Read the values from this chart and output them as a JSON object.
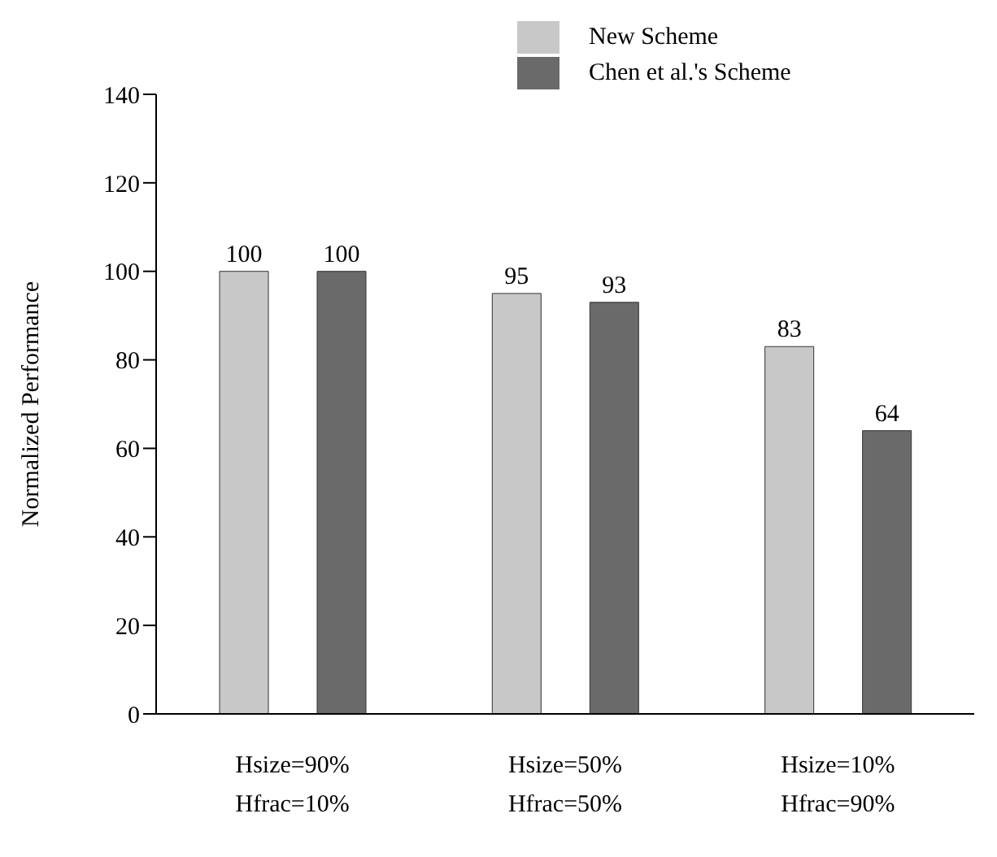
{
  "chart_data": {
    "type": "bar",
    "ylabel": "Normalized Performance",
    "categories": [
      "Hsize=90%\nHfrac=10%",
      "Hsize=50%\nHfrac=50%",
      "Hsize=10%\nHfrac=90%"
    ],
    "series": [
      {
        "name": "New Scheme",
        "color": "#c8c8c8",
        "values": [
          100,
          95,
          83
        ]
      },
      {
        "name": "Chen et al.'s Scheme",
        "color": "#6a6a6a",
        "values": [
          100,
          93,
          64
        ]
      }
    ],
    "ylim": [
      0,
      140
    ],
    "yticks": [
      0,
      20,
      40,
      60,
      80,
      100,
      120,
      140
    ],
    "grid": false,
    "legend": "top",
    "data_labels": true
  }
}
